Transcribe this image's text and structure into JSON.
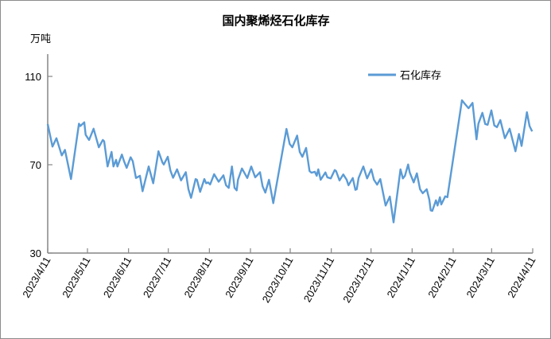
{
  "chart_data": {
    "type": "line",
    "title": "国内聚烯烃石化库存",
    "ylabel": "万吨",
    "xlabel": "",
    "x_unit": "days since 2023/4/11",
    "ylim": [
      30,
      110
    ],
    "xlim": [
      0,
      366
    ],
    "y_ticks": [
      30,
      70,
      110
    ],
    "x_ticks": [
      {
        "day": 0,
        "label": "2023/4/11"
      },
      {
        "day": 30,
        "label": "2023/5/11"
      },
      {
        "day": 61,
        "label": "2023/6/11"
      },
      {
        "day": 91,
        "label": "2023/7/11"
      },
      {
        "day": 122,
        "label": "2023/8/11"
      },
      {
        "day": 153,
        "label": "2023/9/11"
      },
      {
        "day": 183,
        "label": "2023/10/11"
      },
      {
        "day": 214,
        "label": "2023/11/11"
      },
      {
        "day": 244,
        "label": "2023/12/11"
      },
      {
        "day": 275,
        "label": "2024/1/11"
      },
      {
        "day": 306,
        "label": "2024/2/11"
      },
      {
        "day": 335,
        "label": "2024/3/11"
      },
      {
        "day": 366,
        "label": "2024/4/11"
      }
    ],
    "grid": false,
    "legend_position": "top-right",
    "series": [
      {
        "name": "石化库存",
        "color": "#5b9bd5",
        "x": [
          0,
          3.6,
          6.6,
          10.6,
          13,
          17.6,
          23.6,
          24.6,
          27.6,
          28.6,
          31.2,
          34.6,
          38.6,
          41.6,
          42.6,
          45.2,
          48.2,
          49.6,
          51.6,
          52.6,
          56,
          57.6,
          59.6,
          62.6,
          64.2,
          66.6,
          69.6,
          71.6,
          76.2,
          79.6,
          83.6,
          86.6,
          87.6,
          90.6,
          92.6,
          94.6,
          97.6,
          100.6,
          104.2,
          106.2,
          108.2,
          111.6,
          112.6,
          115,
          118.2,
          119.6,
          121,
          122.6,
          125.6,
          129,
          132.6,
          134.6,
          136.6,
          139,
          141,
          142.6,
          143.6,
          146.6,
          150.6,
          153.6,
          156.6,
          160.2,
          162.2,
          164.2,
          167,
          170.2,
          180.2,
          182.6,
          184.6,
          188.2,
          190.2,
          192.2,
          195,
          197.6,
          199,
          201.6,
          203,
          204.2,
          206,
          209.6,
          211,
          213.6,
          216.6,
          217.6,
          220.2,
          223,
          225.6,
          227,
          230.2,
          232.2,
          233.2,
          234.6,
          238.2,
          241,
          244.2,
          246.2,
          248.6,
          251,
          255,
          258.2,
          261,
          266.2,
          268,
          269.6,
          272,
          273.2,
          276.2,
          278.6,
          281,
          283,
          286,
          288,
          289,
          290.2,
          293,
          294.2,
          296,
          297,
          300,
          301.6,
          312.6,
          314.6,
          317.6,
          320.6,
          323.6,
          325,
          328,
          330.2,
          332,
          334.8,
          337,
          339,
          341.6,
          345,
          348.6,
          353,
          355.6,
          357.6,
          361.6,
          363.6,
          365.6
        ],
        "y": [
          88.4,
          78.2,
          82.0,
          74.2,
          76.7,
          63.5,
          88.6,
          87.5,
          89.2,
          83.6,
          81.2,
          86.3,
          77.9,
          81.2,
          80.6,
          69.2,
          75.8,
          69.2,
          72.2,
          69.2,
          74.6,
          71.6,
          68.6,
          73.4,
          71.6,
          64.0,
          65.0,
          58.0,
          69.2,
          61.6,
          76.1,
          71.0,
          70.1,
          73.6,
          67.4,
          64.1,
          67.9,
          62.9,
          66.6,
          58.9,
          55.0,
          63.5,
          63.2,
          57.7,
          63.5,
          61.6,
          62.0,
          61.1,
          65.7,
          62.3,
          65.2,
          60.7,
          59.5,
          69.2,
          59.5,
          58.4,
          63.2,
          68.3,
          64.0,
          69.2,
          64.3,
          66.6,
          60.2,
          57.4,
          63.2,
          52.6,
          86.2,
          79.4,
          77.9,
          83.2,
          75.8,
          73.6,
          77.6,
          67.1,
          66.4,
          66.8,
          65.0,
          67.9,
          63.2,
          66.5,
          64.3,
          63.8,
          67.6,
          67.1,
          62.9,
          65.6,
          63.2,
          60.7,
          64.0,
          58.6,
          58.9,
          64.0,
          69.2,
          63.8,
          67.9,
          63.2,
          61.0,
          63.5,
          51.5,
          55.6,
          43.9,
          67.9,
          63.8,
          65.0,
          70.1,
          66.5,
          62.0,
          66.1,
          58.9,
          57.1,
          58.9,
          54.1,
          49.3,
          49.1,
          53.9,
          51.5,
          55.3,
          52.0,
          55.7,
          55.3,
          99.2,
          97.7,
          95.6,
          98.0,
          81.5,
          88.6,
          93.5,
          88.4,
          88.1,
          94.6,
          87.8,
          87.0,
          90.2,
          82.0,
          86.3,
          76.1,
          83.9,
          78.5,
          93.8,
          87.5,
          85.1
        ]
      }
    ]
  }
}
